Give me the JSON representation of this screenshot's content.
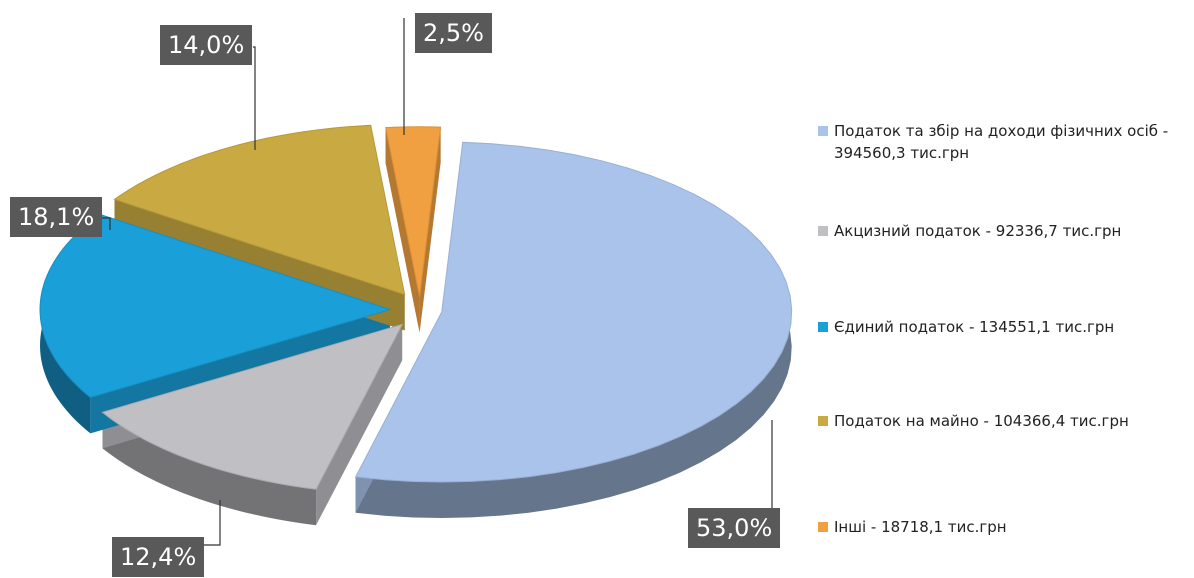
{
  "chart_data": {
    "type": "pie",
    "categories": [
      "Податок та збір на доходи фізичних осіб - 394560,3 тис.грн",
      "Акцизний податок - 92336,7 тис.грн",
      "Єдиний податок - 134551,1 тис.грн",
      "Податок на майно - 104366,4 тис.грн",
      "Інші - 18718,1 тис.грн"
    ],
    "values": [
      53.0,
      12.4,
      18.1,
      14.0,
      2.5
    ],
    "value_labels": [
      "53,0%",
      "12,4%",
      "18,1%",
      "14,0%",
      "2,5%"
    ],
    "colors": [
      "#a9c3ea",
      "#bfbfc4",
      "#1a9fd8",
      "#c9aa42",
      "#f0a040"
    ],
    "legend": "right"
  }
}
